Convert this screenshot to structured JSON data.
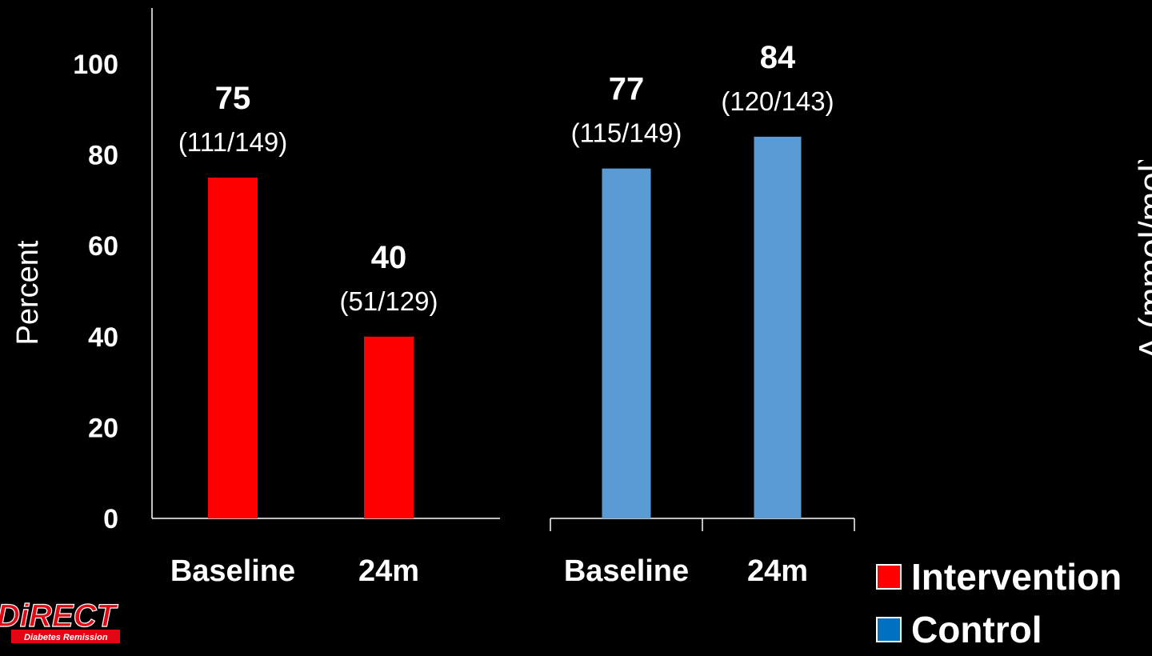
{
  "chart_data": {
    "type": "bar",
    "title": "",
    "xlabel": "",
    "ylabel": "Percent",
    "ylim": [
      0,
      100
    ],
    "yticks": [
      "0",
      "20",
      "40",
      "60",
      "80",
      "100"
    ],
    "groups": [
      {
        "name": "Intervention",
        "color": "#ff0000",
        "bars": [
          {
            "category": "Baseline",
            "value": 75,
            "value_label": "75",
            "fraction_label": "(111/149)"
          },
          {
            "category": "24m",
            "value": 40,
            "value_label": "40",
            "fraction_label": "(51/129)"
          }
        ]
      },
      {
        "name": "Control",
        "color": "#5b9bd5",
        "bars": [
          {
            "category": "Baseline",
            "value": 77,
            "value_label": "77",
            "fraction_label": "(115/149)"
          },
          {
            "category": "24m",
            "value": 84,
            "value_label": "84",
            "fraction_label": "(120/143)"
          }
        ]
      }
    ],
    "legend": [
      {
        "label": "Intervention",
        "color": "#ff0000"
      },
      {
        "label": "Control",
        "color": "#0070c0"
      }
    ],
    "grid": false,
    "legend_position": "bottom-right"
  },
  "right_axis_partial_label": "Δ (mmol/mol)",
  "logo": {
    "text": "DiRECT",
    "subtitle": "Diabetes Remission",
    "color": "#e30613"
  }
}
